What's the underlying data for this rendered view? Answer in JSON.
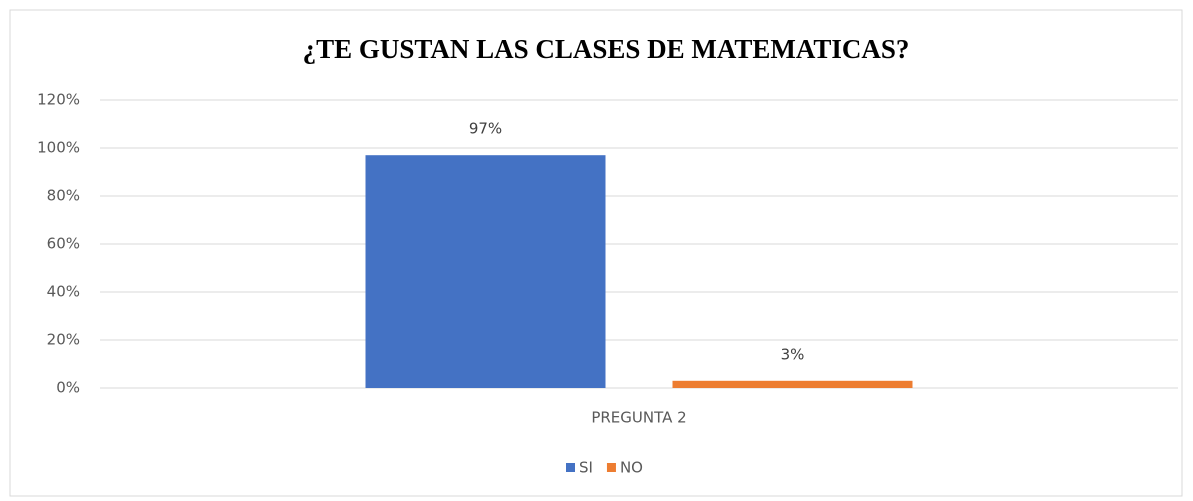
{
  "chart_data": {
    "type": "bar",
    "title": "¿TE GUSTAN LAS CLASES DE MATEMATICAS?",
    "categories": [
      "PREGUNTA 2"
    ],
    "series": [
      {
        "name": "SI",
        "color": "#4472c4",
        "values": [
          97
        ],
        "value_labels": [
          "97%"
        ]
      },
      {
        "name": "NO",
        "color": "#ed7d31",
        "values": [
          3
        ],
        "value_labels": [
          "3%"
        ]
      }
    ],
    "ylim": [
      0,
      120
    ],
    "yticks": [
      {
        "value": 0,
        "label": "0%"
      },
      {
        "value": 20,
        "label": "20%"
      },
      {
        "value": 40,
        "label": "40%"
      },
      {
        "value": 60,
        "label": "60%"
      },
      {
        "value": 80,
        "label": "80%"
      },
      {
        "value": 100,
        "label": "100%"
      },
      {
        "value": 120,
        "label": "120%"
      }
    ],
    "grid": true,
    "legend": "bottom"
  }
}
